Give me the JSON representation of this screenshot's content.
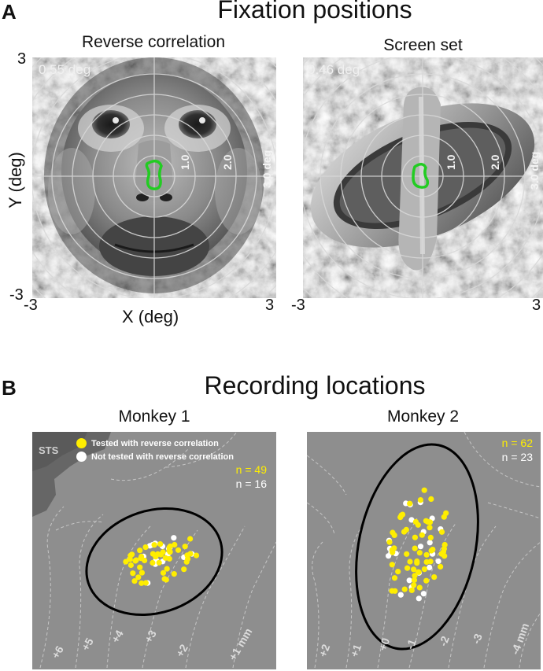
{
  "panel_a": {
    "letter": "A",
    "title": "Fixation positions",
    "y_axis_label": "Y (deg)",
    "x_axis_label": "X (deg)",
    "left": {
      "title": "Reverse correlation",
      "spread_label": "0.55 deg",
      "ring_labels": [
        "1.0",
        "2.0",
        "3.0 deg"
      ],
      "y_tick_top": "3",
      "y_tick_bottom": "-3",
      "x_tick_left": "-3",
      "x_tick_right": "3"
    },
    "right": {
      "title": "Screen set",
      "spread_label": "0.46 deg",
      "ring_labels": [
        "1.0",
        "2.0",
        "3.0 deg"
      ],
      "x_tick_left": "-3",
      "x_tick_right": "3"
    },
    "fixation_color": "#22cc22",
    "grid_color": "#d8d8d8"
  },
  "panel_b": {
    "letter": "B",
    "title": "Recording locations",
    "legend": {
      "tested": "Tested with reverse correlation",
      "not_tested": "Not tested with reverse correlation"
    },
    "tested_color": "#ffee00",
    "not_tested_color": "#ffffff",
    "monkey1": {
      "title": "Monkey 1",
      "sts_label": "STS",
      "n_tested": "n = 49",
      "n_not_tested": "n = 16",
      "contour_labels": [
        "+6",
        "+5",
        "+4",
        "+3",
        "+2",
        "+1 mm"
      ]
    },
    "monkey2": {
      "title": "Monkey 2",
      "n_tested": "n = 62",
      "n_not_tested": "n = 23",
      "contour_labels": [
        "+2",
        "+1",
        "+0",
        "-1",
        "-2",
        "-3",
        "-4 mm"
      ]
    }
  }
}
